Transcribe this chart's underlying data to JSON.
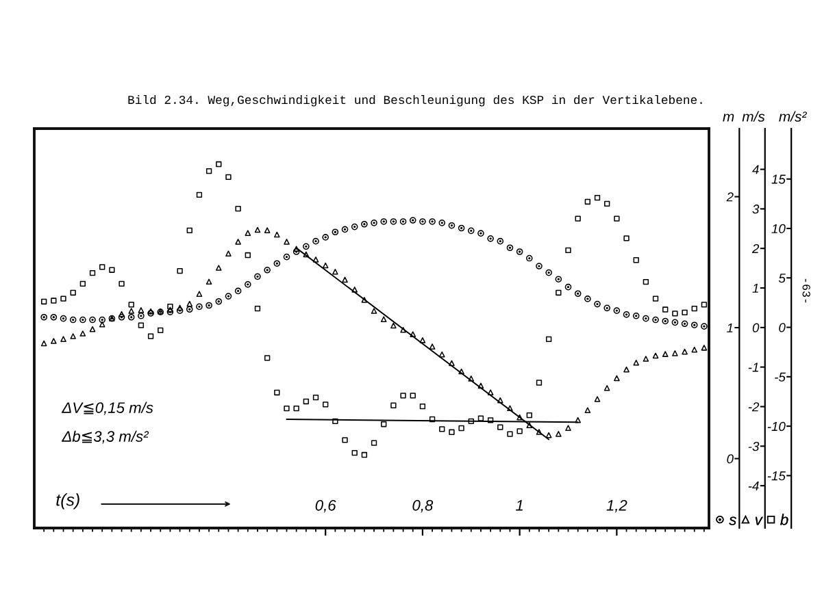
{
  "chart_data": {
    "type": "scatter",
    "title": "Bild 2.34. Weg,Geschwindigkeit und Beschleunigung des KSP in der Vertikalebene.",
    "xlabel": "t(s)",
    "ylabel": "m",
    "y2label": "m/s",
    "y3label": "m/s²",
    "xlim": [
      0,
      1.39
    ],
    "xticks": [
      {
        "value": 0.02,
        "label": null
      },
      {
        "value": 0.04,
        "label": null
      },
      {
        "value": 0.06,
        "label": null
      },
      {
        "value": 0.08,
        "label": null
      },
      {
        "value": 0.1,
        "label": null
      },
      {
        "value": 0.12,
        "label": null
      },
      {
        "value": 0.14,
        "label": null
      },
      {
        "value": 0.16,
        "label": null
      },
      {
        "value": 0.18,
        "label": null
      },
      {
        "value": 0.2,
        "label": null
      },
      {
        "value": 0.22,
        "label": null
      },
      {
        "value": 0.24,
        "label": null
      },
      {
        "value": 0.26,
        "label": null
      },
      {
        "value": 0.28,
        "label": null
      },
      {
        "value": 0.3,
        "label": null
      },
      {
        "value": 0.32,
        "label": null
      },
      {
        "value": 0.34,
        "label": null
      },
      {
        "value": 0.36,
        "label": null
      },
      {
        "value": 0.38,
        "label": null
      },
      {
        "value": 0.4,
        "label": null
      },
      {
        "value": 0.42,
        "label": null
      },
      {
        "value": 0.44,
        "label": null
      },
      {
        "value": 0.46,
        "label": null
      },
      {
        "value": 0.48,
        "label": null
      },
      {
        "value": 0.5,
        "label": null
      },
      {
        "value": 0.52,
        "label": null
      },
      {
        "value": 0.54,
        "label": null
      },
      {
        "value": 0.56,
        "label": null
      },
      {
        "value": 0.58,
        "label": null
      },
      {
        "value": 0.6,
        "label": "0,6"
      },
      {
        "value": 0.62,
        "label": null
      },
      {
        "value": 0.64,
        "label": null
      },
      {
        "value": 0.66,
        "label": null
      },
      {
        "value": 0.68,
        "label": null
      },
      {
        "value": 0.7,
        "label": null
      },
      {
        "value": 0.72,
        "label": null
      },
      {
        "value": 0.74,
        "label": null
      },
      {
        "value": 0.76,
        "label": null
      },
      {
        "value": 0.78,
        "label": null
      },
      {
        "value": 0.8,
        "label": "0,8"
      },
      {
        "value": 0.82,
        "label": null
      },
      {
        "value": 0.84,
        "label": null
      },
      {
        "value": 0.86,
        "label": null
      },
      {
        "value": 0.88,
        "label": null
      },
      {
        "value": 0.9,
        "label": null
      },
      {
        "value": 0.92,
        "label": null
      },
      {
        "value": 0.94,
        "label": null
      },
      {
        "value": 0.96,
        "label": null
      },
      {
        "value": 0.98,
        "label": null
      },
      1,
      {
        "value": 1.02,
        "label": null
      },
      {
        "value": 1.04,
        "label": null
      },
      {
        "value": 1.06,
        "label": null
      },
      {
        "value": 1.08,
        "label": null
      },
      {
        "value": 1.1,
        "label": null
      },
      {
        "value": 1.12,
        "label": null
      },
      {
        "value": 1.14,
        "label": null
      },
      {
        "value": 1.16,
        "label": null
      },
      {
        "value": 1.18,
        "label": null
      },
      {
        "value": 1.2,
        "label": "1,2"
      },
      {
        "value": 1.22,
        "label": null
      },
      {
        "value": 1.24,
        "label": null
      },
      {
        "value": 1.26,
        "label": null
      },
      {
        "value": 1.28,
        "label": null
      },
      {
        "value": 1.3,
        "label": null
      },
      {
        "value": 1.32,
        "label": null
      },
      {
        "value": 1.34,
        "label": null
      },
      {
        "value": 1.36,
        "label": null
      },
      {
        "value": 1.38,
        "label": null
      }
    ],
    "ylim": [
      -0.53,
      2.52
    ],
    "yticks": [
      0,
      1,
      2
    ],
    "y2lim": [
      -5.07,
      5.03
    ],
    "y2ticks": [
      -4,
      -3,
      -2,
      -1,
      0,
      1,
      2,
      3,
      4
    ],
    "y3lim": [
      -20.3,
      20.1
    ],
    "y3ticks": [
      -15,
      -10,
      -5,
      0,
      5,
      10,
      15
    ],
    "x": [
      0.02,
      0.04,
      0.06,
      0.08,
      0.1,
      0.12,
      0.14,
      0.16,
      0.18,
      0.2,
      0.22,
      0.24,
      0.26,
      0.28,
      0.3,
      0.32,
      0.34,
      0.36,
      0.38,
      0.4,
      0.42,
      0.44,
      0.46,
      0.48,
      0.5,
      0.52,
      0.54,
      0.56,
      0.58,
      0.6,
      0.62,
      0.64,
      0.66,
      0.68,
      0.7,
      0.72,
      0.74,
      0.76,
      0.78,
      0.8,
      0.82,
      0.84,
      0.86,
      0.88,
      0.9,
      0.92,
      0.94,
      0.96,
      0.98,
      1.0,
      1.02,
      1.04,
      1.06,
      1.08,
      1.1,
      1.12,
      1.14,
      1.16,
      1.18,
      1.2,
      1.22,
      1.24,
      1.26,
      1.28,
      1.3,
      1.32,
      1.34,
      1.36,
      1.38
    ],
    "series": [
      {
        "name": "s",
        "color": "#000000",
        "marker": "circle",
        "values": [
          1.08,
          1.08,
          1.07,
          1.06,
          1.06,
          1.06,
          1.06,
          1.07,
          1.08,
          1.08,
          1.09,
          1.11,
          1.12,
          1.12,
          1.13,
          1.14,
          1.16,
          1.17,
          1.2,
          1.24,
          1.28,
          1.33,
          1.39,
          1.44,
          1.49,
          1.54,
          1.58,
          1.62,
          1.66,
          1.69,
          1.73,
          1.75,
          1.77,
          1.79,
          1.8,
          1.81,
          1.81,
          1.81,
          1.82,
          1.81,
          1.81,
          1.8,
          1.78,
          1.76,
          1.74,
          1.72,
          1.68,
          1.66,
          1.61,
          1.58,
          1.53,
          1.47,
          1.42,
          1.37,
          1.31,
          1.26,
          1.22,
          1.18,
          1.15,
          1.13,
          1.1,
          1.09,
          1.07,
          1.06,
          1.05,
          1.04,
          1.03,
          1.02,
          1.01
        ]
      },
      {
        "name": "v",
        "color": "#000000",
        "marker": "triangle",
        "axis": "y2",
        "values": [
          -0.4,
          -0.34,
          -0.29,
          -0.22,
          -0.15,
          -0.04,
          0.08,
          0.23,
          0.34,
          0.42,
          0.44,
          0.41,
          0.41,
          0.45,
          0.5,
          0.6,
          0.85,
          1.16,
          1.51,
          1.87,
          2.17,
          2.39,
          2.47,
          2.46,
          2.35,
          2.17,
          1.99,
          1.85,
          1.72,
          1.57,
          1.41,
          1.21,
          0.96,
          0.7,
          0.42,
          0.21,
          0.05,
          -0.06,
          -0.17,
          -0.32,
          -0.48,
          -0.68,
          -0.9,
          -1.11,
          -1.29,
          -1.47,
          -1.64,
          -1.84,
          -2.04,
          -2.27,
          -2.47,
          -2.64,
          -2.72,
          -2.69,
          -2.54,
          -2.34,
          -2.09,
          -1.81,
          -1.53,
          -1.28,
          -1.06,
          -0.89,
          -0.79,
          -0.71,
          -0.67,
          -0.65,
          -0.61,
          -0.56,
          -0.51
        ]
      },
      {
        "name": "b",
        "color": "#000000",
        "marker": "square",
        "axis": "y3",
        "values": [
          2.6,
          2.7,
          2.9,
          3.5,
          4.4,
          5.5,
          6.1,
          5.8,
          4.4,
          2.3,
          0.2,
          -0.9,
          -0.3,
          2.1,
          5.7,
          9.8,
          13.4,
          15.8,
          16.5,
          15.2,
          12.0,
          7.3,
          1.9,
          -3.1,
          -6.6,
          -8.2,
          -8.2,
          -7.5,
          -7.1,
          -7.8,
          -9.5,
          -11.4,
          -12.7,
          -12.9,
          -11.7,
          -9.8,
          -7.9,
          -6.9,
          -6.9,
          -8.0,
          -9.3,
          -10.3,
          -10.6,
          -10.2,
          -9.5,
          -9.2,
          -9.4,
          -10.1,
          -10.8,
          -10.5,
          -8.9,
          -5.6,
          -1.2,
          3.5,
          7.8,
          11.0,
          12.7,
          13.1,
          12.5,
          11.0,
          9.0,
          6.8,
          4.6,
          2.9,
          1.8,
          1.4,
          1.5,
          1.9,
          2.3
        ]
      },
      {
        "type": "line",
        "color": "#000000",
        "axis": "y2",
        "x": [
          0.54,
          1.06
        ],
        "values": [
          2.01,
          -2.83
        ]
      },
      {
        "type": "line",
        "color": "#000000",
        "axis": "y3",
        "x": [
          0.52,
          1.12
        ],
        "values": [
          -9.3,
          -9.6
        ]
      }
    ],
    "legend": "bottom right",
    "annotations": [
      "ΔV≦0,15 m/s",
      "Δb≦3,3 m/s²",
      "-63-"
    ]
  }
}
